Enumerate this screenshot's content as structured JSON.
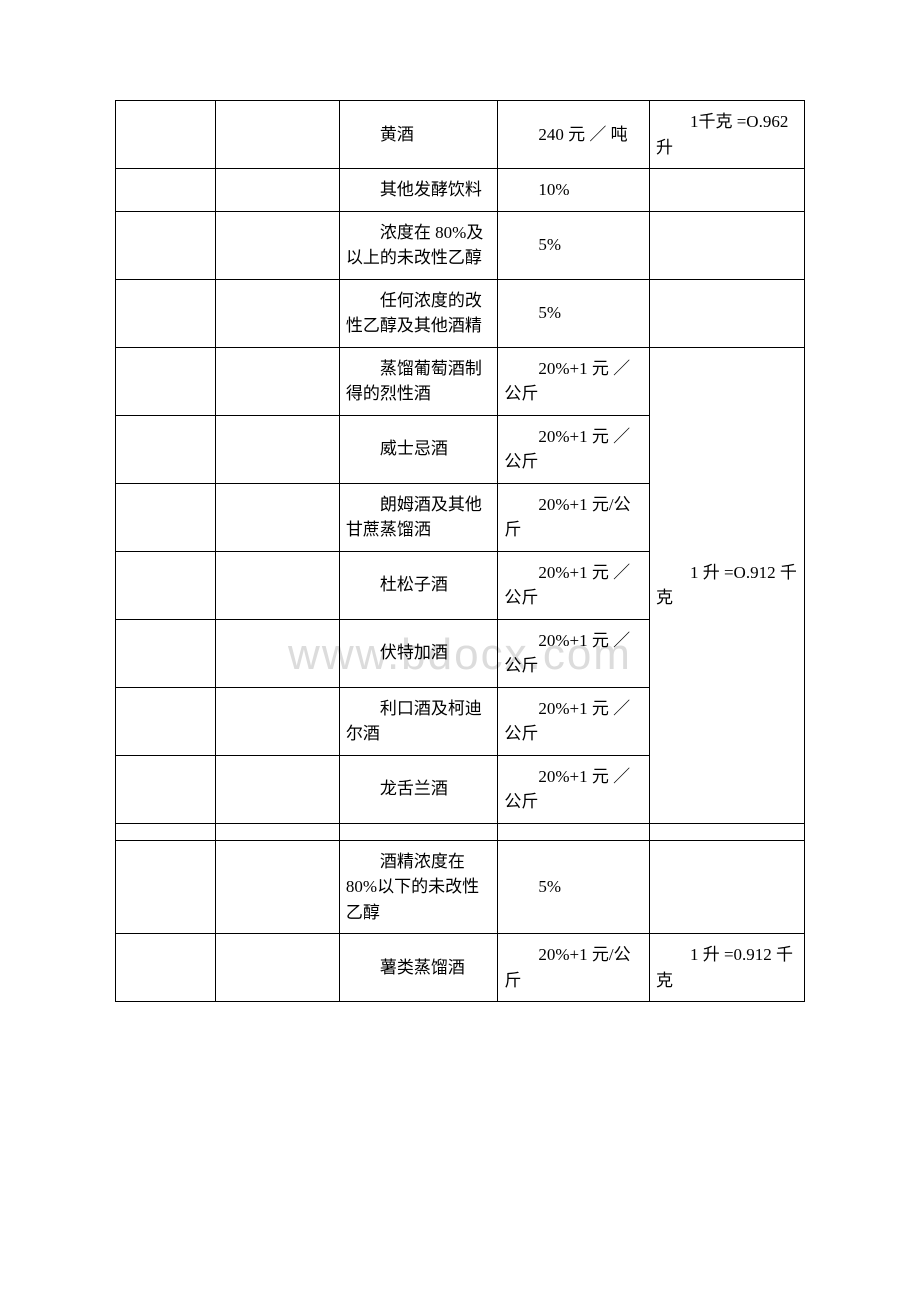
{
  "watermark": "www.bdocx.com",
  "rows": [
    {
      "c3": "　　黄酒",
      "c4": "　　240 元 ／ 吨",
      "c5": "　　1千克 =O.962 升"
    },
    {
      "c3": "　　其他发酵饮料",
      "c4": "　　10%",
      "c5": ""
    },
    {
      "c3": "　　浓度在 80%及以上的未改性乙醇",
      "c4": "　　5%",
      "c5": ""
    },
    {
      "c3": "　　任何浓度的改性乙醇及其他酒精",
      "c4": "　　5%",
      "c5": ""
    },
    {
      "c3": "　　蒸馏葡萄酒制得的烈性酒",
      "c4": "　　20%+1 元 ／ 公斤",
      "c5_span": "　　1 升 =O.912 千克"
    },
    {
      "c3": "　　威士忌酒",
      "c4": "　　20%+1 元 ／ 公斤"
    },
    {
      "c3": "　　朗姆酒及其他甘蔗蒸馏洒",
      "c4": "　　20%+1 元/公斤"
    },
    {
      "c3": "　　杜松子酒",
      "c4": "　　20%+1 元 ／ 公斤"
    },
    {
      "c3": "　　伏特加酒",
      "c4": "　　20%+1 元 ／ 公斤"
    },
    {
      "c3": "　　利口酒及柯迪尔酒",
      "c4": "　　20%+1 元 ／ 公斤"
    },
    {
      "c3": "　　龙舌兰酒",
      "c4": "　　20%+1 元 ／ 公斤"
    },
    {
      "spacer": true
    },
    {
      "c3": "　　酒精浓度在 80%以下的未改性乙醇",
      "c4": "　　5%",
      "c5": ""
    },
    {
      "c3": "　　薯类蒸馏酒",
      "c4": "　　20%+1 元/公斤",
      "c5": "　　1 升 =0.912 千克"
    }
  ]
}
